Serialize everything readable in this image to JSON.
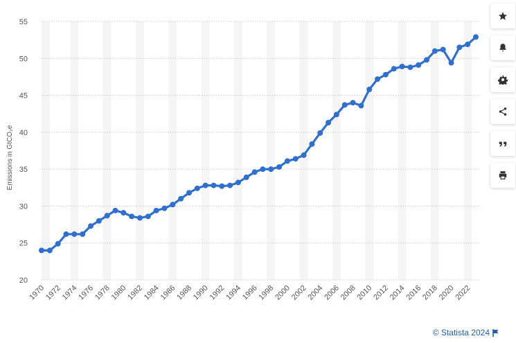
{
  "chart_data": {
    "type": "line",
    "xlabel": "",
    "ylabel": "Emissions in GtCO₂e",
    "ylim": [
      20,
      55
    ],
    "yticks": [
      20,
      25,
      30,
      35,
      40,
      45,
      50,
      55
    ],
    "x_tick_labels": [
      "1970",
      "1972",
      "1974",
      "1976",
      "1978",
      "1980",
      "1982",
      "1984",
      "1986",
      "1988",
      "1990",
      "1992",
      "1994",
      "1996",
      "1998",
      "2000",
      "2002",
      "2004",
      "2006",
      "2008",
      "2010",
      "2012",
      "2014",
      "2016",
      "2018",
      "2020",
      "2022"
    ],
    "grid": true,
    "legend": "none",
    "color": "#2f6fcf",
    "series": [
      {
        "x": [
          1970,
          1971,
          1972,
          1973,
          1974,
          1975,
          1976,
          1977,
          1978,
          1979,
          1980,
          1981,
          1982,
          1983,
          1984,
          1985,
          1986,
          1987,
          1988,
          1989,
          1990,
          1991,
          1992,
          1993,
          1994,
          1995,
          1996,
          1997,
          1998,
          1999,
          2000,
          2001,
          2002,
          2003,
          2004,
          2005,
          2006,
          2007,
          2008,
          2009,
          2010,
          2011,
          2012,
          2013,
          2014,
          2015,
          2016,
          2017,
          2018,
          2019,
          2020,
          2021,
          2022,
          2023
        ],
        "values": [
          24.0,
          24.0,
          24.9,
          26.2,
          26.2,
          26.2,
          27.3,
          28.0,
          28.7,
          29.4,
          29.1,
          28.6,
          28.4,
          28.6,
          29.4,
          29.7,
          30.2,
          31.0,
          31.8,
          32.4,
          32.8,
          32.8,
          32.7,
          32.8,
          33.2,
          33.9,
          34.6,
          35.0,
          35.0,
          35.3,
          36.1,
          36.4,
          36.9,
          38.4,
          39.9,
          41.3,
          42.4,
          43.7,
          44.0,
          43.6,
          45.8,
          47.2,
          47.8,
          48.6,
          48.9,
          48.8,
          49.1,
          49.8,
          51.0,
          51.2,
          49.4,
          51.5,
          51.9,
          52.9
        ]
      }
    ]
  },
  "toolbar": {
    "items": [
      {
        "name": "star-icon"
      },
      {
        "name": "bell-icon"
      },
      {
        "name": "gear-icon"
      },
      {
        "name": "share-icon"
      },
      {
        "name": "quote-icon"
      },
      {
        "name": "print-icon"
      }
    ]
  },
  "credit": {
    "text": "© Statista 2024",
    "flag_icon": "flag-icon"
  }
}
